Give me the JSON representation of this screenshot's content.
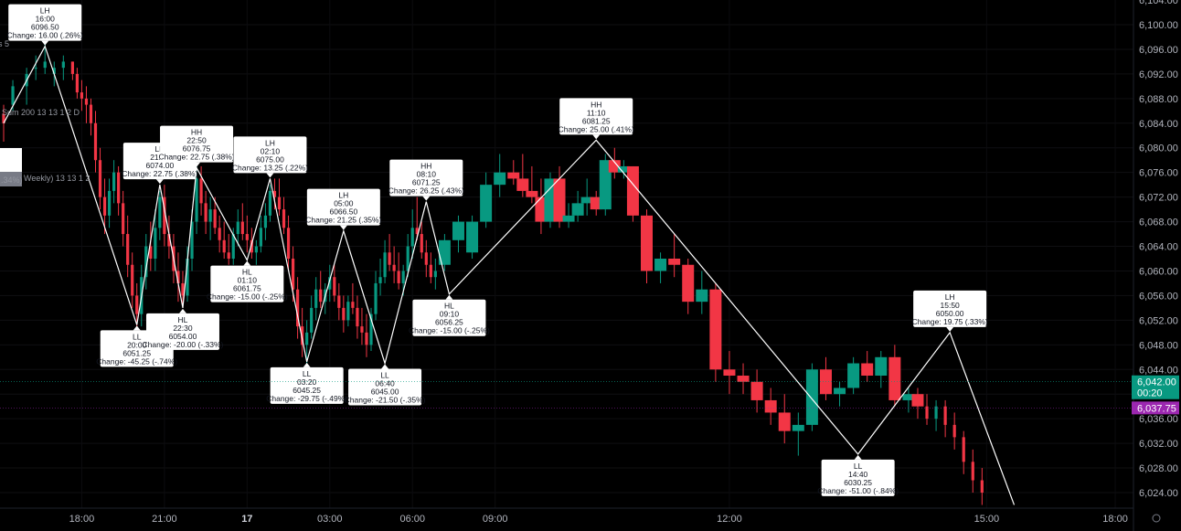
{
  "chart_data": {
    "type": "candlestick",
    "colors": {
      "up": "#089981",
      "down": "#f23645",
      "zigzag": "#ffffff",
      "background": "#000000",
      "price_tag_green": "#089981",
      "price_tag_purple": "#9c27b0"
    },
    "y_axis": {
      "range": [
        6021,
        6105
      ],
      "ticks": [
        "6,024.00",
        "6,028.00",
        "6,032.00",
        "6,036.00",
        "6,040.00",
        "6,044.00",
        "6,048.00",
        "6,052.00",
        "6,056.00",
        "6,060.00",
        "6,064.00",
        "6,068.00",
        "6,072.00",
        "6,076.00",
        "6,080.00",
        "6,084.00",
        "6,088.00",
        "6,092.00",
        "6,096.00",
        "6,100.00"
      ],
      "top_partial_tick": "6,104.00"
    },
    "x_axis": {
      "labels": [
        {
          "text": "18:00",
          "slot": 17
        },
        {
          "text": "21:00",
          "slot": 35
        },
        {
          "text": "17",
          "slot": 53,
          "bold": true
        },
        {
          "text": "03:00",
          "slot": 71
        },
        {
          "text": "06:00",
          "slot": 89
        },
        {
          "text": "09:00",
          "slot": 107
        },
        {
          "text": "12:00",
          "slot": 158
        },
        {
          "text": "15:00",
          "slot": 214
        },
        {
          "text": "18:00",
          "slot": 242
        }
      ]
    },
    "price_tags": [
      {
        "value": 6042.0,
        "label": "6,042.00",
        "sub": "00:20",
        "color": "green"
      },
      {
        "value": 6037.75,
        "label": "6,037.75",
        "color": "purple"
      }
    ],
    "ghost_labels": [
      "s 5",
      "Sum 200 13 13 1 2 D",
      "Weekly) 13 13 1 2",
      ".34%)"
    ],
    "candles": [
      [
        0,
        6085.5,
        6087,
        6081,
        6084
      ],
      [
        2,
        6087,
        6091,
        6086,
        6090
      ],
      [
        5,
        6090,
        6093,
        6087,
        6092
      ],
      [
        7,
        6093,
        6095,
        6091,
        6093
      ],
      [
        9,
        6093,
        6097,
        6092,
        6094
      ],
      [
        11,
        6092,
        6094,
        6090,
        6093
      ],
      [
        13,
        6093,
        6095,
        6091,
        6094
      ],
      [
        15,
        6094,
        6094,
        6091,
        6092
      ],
      [
        16,
        6092,
        6093,
        6088,
        6089
      ],
      [
        17,
        6089,
        6091,
        6086,
        6088
      ],
      [
        18,
        6088,
        6090,
        6084,
        6087
      ],
      [
        19,
        6087,
        6088,
        6082,
        6084
      ],
      [
        20,
        6084,
        6086,
        6076,
        6078
      ],
      [
        21,
        6078,
        6080,
        6070,
        6072
      ],
      [
        22,
        6072,
        6075,
        6066,
        6069
      ],
      [
        23,
        6069,
        6075,
        6067,
        6073
      ],
      [
        24,
        6073,
        6078,
        6071,
        6076
      ],
      [
        25,
        6076,
        6077,
        6069,
        6071
      ],
      [
        26,
        6071,
        6073,
        6064,
        6066
      ],
      [
        27,
        6066,
        6069,
        6059,
        6061
      ],
      [
        28,
        6061,
        6063,
        6054,
        6056
      ],
      [
        29,
        6056,
        6058,
        6051,
        6053
      ],
      [
        30,
        6053,
        6061,
        6051,
        6059
      ],
      [
        31,
        6059,
        6066,
        6057,
        6064
      ],
      [
        32,
        6064,
        6068,
        6060,
        6062
      ],
      [
        33,
        6062,
        6070,
        6060,
        6067
      ],
      [
        34,
        6067,
        6073,
        6065,
        6072
      ],
      [
        35,
        6072,
        6074,
        6064,
        6066
      ],
      [
        36,
        6066,
        6069,
        6062,
        6064
      ],
      [
        37,
        6064,
        6066,
        6058,
        6060
      ],
      [
        38,
        6060,
        6063,
        6055,
        6058
      ],
      [
        39,
        6058,
        6060,
        6054,
        6056
      ],
      [
        40,
        6056,
        6064,
        6055,
        6062
      ],
      [
        41,
        6062,
        6070,
        6060,
        6068
      ],
      [
        42,
        6068,
        6077,
        6066,
        6075
      ],
      [
        43,
        6075,
        6077,
        6069,
        6071
      ],
      [
        44,
        6071,
        6073,
        6066,
        6068
      ],
      [
        45,
        6068,
        6072,
        6065,
        6070
      ],
      [
        46,
        6070,
        6072,
        6066,
        6067
      ],
      [
        47,
        6067,
        6069,
        6063,
        6065
      ],
      [
        48,
        6065,
        6068,
        6062,
        6063
      ],
      [
        49,
        6063,
        6066,
        6061,
        6062
      ],
      [
        50,
        6062,
        6067,
        6061,
        6066
      ],
      [
        51,
        6066,
        6070,
        6064,
        6068
      ],
      [
        52,
        6068,
        6071,
        6065,
        6066
      ],
      [
        53,
        6066,
        6069,
        6063,
        6065
      ],
      [
        54,
        6065,
        6067,
        6062,
        6063
      ],
      [
        55,
        6063,
        6065,
        6061,
        6064
      ],
      [
        56,
        6064,
        6069,
        6063,
        6067
      ],
      [
        57,
        6067,
        6071,
        6065,
        6069
      ],
      [
        58,
        6069,
        6074,
        6068,
        6073
      ],
      [
        59,
        6073,
        6075,
        6070,
        6072
      ],
      [
        60,
        6072,
        6075,
        6069,
        6070
      ],
      [
        61,
        6070,
        6072,
        6066,
        6067
      ],
      [
        62,
        6067,
        6069,
        6060,
        6062
      ],
      [
        63,
        6062,
        6064,
        6055,
        6057
      ],
      [
        64,
        6057,
        6059,
        6049,
        6051
      ],
      [
        65,
        6051,
        6054,
        6046,
        6048
      ],
      [
        66,
        6048,
        6052,
        6045,
        6050
      ],
      [
        67,
        6050,
        6056,
        6049,
        6054
      ],
      [
        68,
        6054,
        6059,
        6052,
        6057
      ],
      [
        69,
        6057,
        6060,
        6054,
        6055
      ],
      [
        70,
        6055,
        6058,
        6053,
        6057
      ],
      [
        71,
        6057,
        6061,
        6055,
        6059
      ],
      [
        72,
        6059,
        6061,
        6055,
        6056
      ],
      [
        73,
        6056,
        6058,
        6052,
        6054
      ],
      [
        74,
        6054,
        6056,
        6050,
        6052
      ],
      [
        75,
        6052,
        6056,
        6051,
        6055
      ],
      [
        76,
        6055,
        6058,
        6053,
        6054
      ],
      [
        77,
        6054,
        6056,
        6049,
        6051
      ],
      [
        78,
        6051,
        6054,
        6048,
        6050
      ],
      [
        79,
        6050,
        6053,
        6046,
        6048
      ],
      [
        80,
        6048,
        6054,
        6047,
        6053
      ],
      [
        81,
        6053,
        6060,
        6052,
        6058
      ],
      [
        82,
        6058,
        6062,
        6056,
        6059
      ],
      [
        83,
        6059,
        6065,
        6058,
        6063
      ],
      [
        84,
        6063,
        6066,
        6060,
        6061
      ],
      [
        85,
        6061,
        6064,
        6058,
        6060
      ],
      [
        86,
        6060,
        6063,
        6057,
        6058
      ],
      [
        87,
        6058,
        6061,
        6056,
        6060
      ],
      [
        88,
        6060,
        6066,
        6059,
        6064
      ],
      [
        89,
        6064,
        6070,
        6062,
        6067
      ],
      [
        90,
        6067,
        6072,
        6065,
        6066
      ],
      [
        91,
        6066,
        6068,
        6062,
        6063
      ],
      [
        92,
        6063,
        6065,
        6059,
        6061
      ],
      [
        93,
        6061,
        6063,
        6058,
        6059
      ],
      [
        94,
        6059,
        6062,
        6057,
        6060
      ],
      [
        96,
        6061,
        6066,
        6060,
        6065
      ],
      [
        99,
        6065,
        6069,
        6063,
        6068
      ],
      [
        102,
        6063,
        6069,
        6062,
        6068
      ],
      [
        105,
        6068,
        6076,
        6067,
        6074
      ],
      [
        108,
        6074,
        6079,
        6072,
        6076
      ],
      [
        111,
        6076,
        6078,
        6074,
        6075
      ],
      [
        113,
        6075,
        6079,
        6072,
        6073
      ],
      [
        115,
        6073,
        6077,
        6071,
        6072
      ],
      [
        117,
        6072,
        6075,
        6066,
        6068
      ],
      [
        119,
        6068,
        6076,
        6067,
        6075
      ],
      [
        121,
        6075,
        6077,
        6067,
        6068
      ],
      [
        123,
        6068,
        6071,
        6067,
        6069
      ],
      [
        125,
        6069,
        6073,
        6068,
        6071
      ],
      [
        127,
        6071,
        6075,
        6069,
        6072
      ],
      [
        129,
        6072,
        6073,
        6069,
        6070
      ],
      [
        131,
        6070,
        6079,
        6069,
        6078
      ],
      [
        133,
        6078,
        6080,
        6075,
        6076
      ],
      [
        135,
        6076,
        6078,
        6075,
        6077
      ],
      [
        137,
        6077,
        6077,
        6068,
        6069
      ],
      [
        140,
        6069,
        6070,
        6058,
        6060
      ],
      [
        143,
        6060,
        6063,
        6058,
        6062
      ],
      [
        146,
        6062,
        6066,
        6059,
        6061
      ],
      [
        149,
        6061,
        6062,
        6053,
        6055
      ],
      [
        152,
        6055,
        6060,
        6053,
        6057
      ],
      [
        155,
        6057,
        6058,
        6042,
        6044
      ],
      [
        158,
        6044,
        6047,
        6040,
        6043
      ],
      [
        161,
        6043,
        6045,
        6040,
        6042
      ],
      [
        164,
        6042,
        6044,
        6037,
        6039
      ],
      [
        167,
        6039,
        6041,
        6035,
        6037
      ],
      [
        170,
        6037,
        6040,
        6032,
        6034
      ],
      [
        173,
        6034,
        6037,
        6030,
        6035
      ],
      [
        176,
        6035,
        6045,
        6034,
        6044
      ],
      [
        179,
        6044,
        6046,
        6039,
        6040
      ],
      [
        182,
        6040,
        6042,
        6038,
        6041
      ],
      [
        185,
        6041,
        6046,
        6040,
        6045
      ],
      [
        188,
        6045,
        6047,
        6042,
        6043
      ],
      [
        191,
        6043,
        6047,
        6041,
        6046
      ],
      [
        194,
        6046,
        6048,
        6038,
        6039
      ],
      [
        197,
        6039,
        6041,
        6037,
        6040
      ],
      [
        199,
        6040,
        6041,
        6036,
        6038
      ],
      [
        201,
        6038,
        6040,
        6035,
        6036
      ],
      [
        203,
        6036,
        6039,
        6034,
        6038
      ],
      [
        205,
        6038,
        6039,
        6033,
        6035
      ],
      [
        207,
        6035,
        6037,
        6031,
        6033
      ],
      [
        209,
        6033,
        6034,
        6027,
        6029
      ],
      [
        211,
        6029,
        6031,
        6024,
        6026
      ],
      [
        213,
        6026,
        6028,
        6022,
        6024
      ]
    ],
    "zigzag": [
      {
        "slot": 0,
        "value": 6084
      },
      {
        "slot": 9,
        "value": 6096.5,
        "type": "LH",
        "time": "16:00",
        "price": "6096.50",
        "change": "Change: 16.00 (.26%)"
      },
      {
        "slot": 29,
        "value": 6051.25,
        "type": "LL",
        "time": "20:00",
        "price": "6051.25",
        "change": "Change: -45.25 (-.74%)"
      },
      {
        "slot": 34,
        "value": 6074,
        "type": "LH",
        "time": "21:00",
        "price": "6074.00",
        "change": "Change: 22.75 (.38%)"
      },
      {
        "slot": 39,
        "value": 6054,
        "type": "HL",
        "time": "22:30",
        "price": "6054.00",
        "change": "Change: -20.00 (-.33%)"
      },
      {
        "slot": 42,
        "value": 6076.75,
        "type": "HH",
        "time": "22:50",
        "price": "6076.75",
        "change": "Change: 22.75 (.38%)"
      },
      {
        "slot": 53,
        "value": 6061.75,
        "type": "HL",
        "time": "01:10",
        "price": "6061.75",
        "change": "Change: -15.00 (-.25%)"
      },
      {
        "slot": 58,
        "value": 6075,
        "type": "LH",
        "time": "02:10",
        "price": "6075.00",
        "change": "Change: 13.25 (.22%)"
      },
      {
        "slot": 66,
        "value": 6045.25,
        "type": "LL",
        "time": "03:20",
        "price": "6045.25",
        "change": "Change: -29.75 (-.49%)"
      },
      {
        "slot": 74,
        "value": 6066.5,
        "type": "LH",
        "time": "05:00",
        "price": "6066.50",
        "change": "Change: 21.25 (.35%)"
      },
      {
        "slot": 83,
        "value": 6045,
        "type": "LL",
        "time": "06:40",
        "price": "6045.00",
        "change": "Change: -21.50 (-.35%)"
      },
      {
        "slot": 92,
        "value": 6071.25,
        "type": "HH",
        "time": "08:10",
        "price": "6071.25",
        "change": "Change: 26.25 (.43%)"
      },
      {
        "slot": 97,
        "value": 6056.25,
        "type": "HL",
        "time": "09:10",
        "price": "6056.25",
        "change": "Change: -15.00 (-.25%)"
      },
      {
        "slot": 129,
        "value": 6081.25,
        "type": "HH",
        "time": "11:10",
        "price": "6081.25",
        "change": "Change: 25.00 (.41%)"
      },
      {
        "slot": 186,
        "value": 6030.25,
        "type": "LL",
        "time": "14:40",
        "price": "6030.25",
        "change": "Change: -51.00 (-.84%)"
      },
      {
        "slot": 206,
        "value": 6050,
        "type": "LH",
        "time": "15:50",
        "price": "6050.00",
        "change": "Change: 19.75 (.33%)"
      },
      {
        "slot": 220,
        "value": 6022
      }
    ]
  }
}
